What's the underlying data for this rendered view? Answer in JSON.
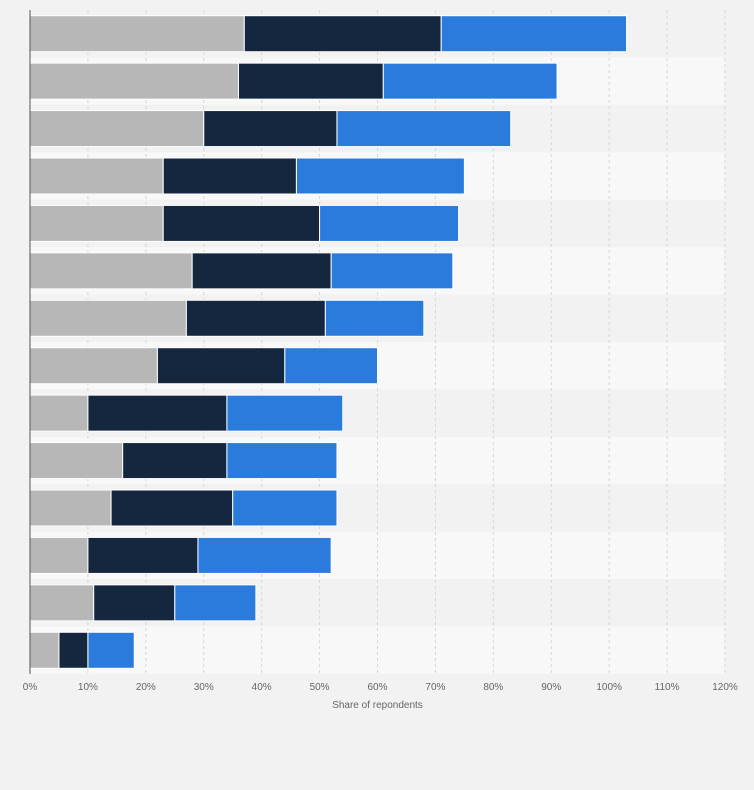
{
  "chart_data": {
    "type": "bar",
    "orientation": "horizontal",
    "stacked": true,
    "title": "",
    "xlabel": "Share of repondents",
    "ylabel": "",
    "xlim": [
      0,
      120
    ],
    "x_ticks": [
      0,
      10,
      20,
      30,
      40,
      50,
      60,
      70,
      80,
      90,
      100,
      110,
      120
    ],
    "x_tick_labels": [
      "0%",
      "10%",
      "20%",
      "30%",
      "40%",
      "50%",
      "60%",
      "70%",
      "80%",
      "90%",
      "100%",
      "110%",
      "120%"
    ],
    "grid": true,
    "legend": "none",
    "categories": [
      "",
      "",
      "",
      "",
      "",
      "",
      "",
      "",
      "",
      "",
      "",
      "",
      "",
      ""
    ],
    "series": [
      {
        "color": "#b7b7b7",
        "values": [
          37,
          36,
          30,
          23,
          23,
          28,
          27,
          22,
          10,
          16,
          14,
          10,
          11,
          5
        ]
      },
      {
        "color": "#14273f",
        "values": [
          34,
          25,
          23,
          23,
          27,
          24,
          24,
          22,
          24,
          18,
          21,
          19,
          14,
          5
        ]
      },
      {
        "color": "#2b7bdd",
        "values": [
          32,
          30,
          30,
          29,
          24,
          21,
          17,
          16,
          20,
          19,
          18,
          23,
          14,
          8
        ]
      }
    ]
  }
}
